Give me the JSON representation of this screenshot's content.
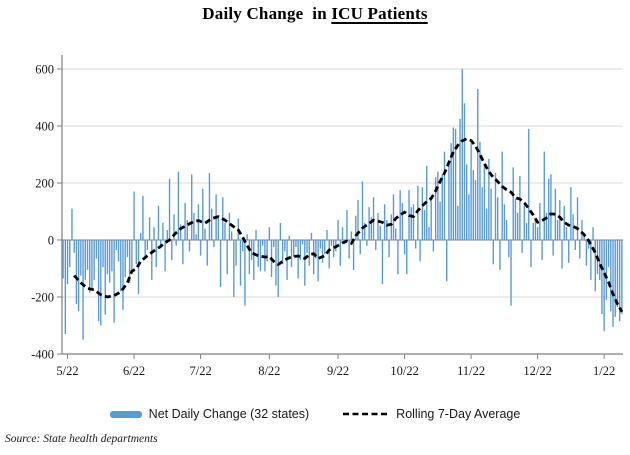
{
  "title": {
    "plain": "Daily Change  in",
    "underlined": "ICU Patients"
  },
  "source_note": "Source: State health departments",
  "legend": {
    "bar_label": "Net Daily Change (32 states)",
    "line_label": "Rolling 7-Day Average"
  },
  "colors": {
    "bar": "#5B9BD5",
    "rolling_line": "#000000",
    "gridline": "#D9D9D9",
    "zero_line": "#A6A6A6",
    "axis": "#808080",
    "text": "#1a1a1a"
  },
  "chart_data": {
    "type": "bar",
    "title": "Daily Change in ICU Patients",
    "xlabel": "",
    "ylabel": "",
    "ylim": [
      -400,
      600
    ],
    "y_ticks": [
      600,
      400,
      200,
      0,
      -200,
      -400
    ],
    "grid": true,
    "legend_position": "bottom",
    "x_tick_labels": [
      "5/22",
      "6/22",
      "7/22",
      "8/22",
      "9/22",
      "10/22",
      "11/22",
      "12/22",
      "1/22"
    ],
    "x_tick_day_indices": [
      2,
      32,
      62,
      93,
      124,
      154,
      184,
      214,
      244
    ],
    "series": [
      {
        "name": "Net Daily Change (32 states)",
        "type": "bar",
        "values": [
          -135,
          -330,
          -155,
          -95,
          110,
          -45,
          -225,
          -250,
          -125,
          -350,
          -140,
          -105,
          -185,
          -170,
          -140,
          -65,
          -285,
          -300,
          -95,
          -262,
          -120,
          -150,
          -110,
          -290,
          -35,
          -75,
          -180,
          -245,
          -130,
          -60,
          -150,
          -110,
          170,
          -85,
          -190,
          25,
          155,
          -60,
          -35,
          80,
          -140,
          45,
          -95,
          120,
          -30,
          60,
          -110,
          35,
          215,
          -70,
          90,
          -20,
          240,
          55,
          -85,
          130,
          70,
          -40,
          230,
          95,
          20,
          125,
          -55,
          180,
          40,
          -90,
          235,
          110,
          -25,
          160,
          85,
          -165,
          150,
          60,
          -120,
          95,
          30,
          -200,
          -90,
          75,
          -160,
          -40,
          -230,
          20,
          -120,
          -70,
          -140,
          35,
          -95,
          -110,
          -20,
          -110,
          -75,
          45,
          -130,
          -25,
          -160,
          -200,
          60,
          -85,
          -40,
          -140,
          15,
          -95,
          -60,
          -25,
          -135,
          -70,
          -15,
          -160,
          -45,
          -90,
          25,
          -120,
          -65,
          -145,
          -30,
          -80,
          -50,
          35,
          -100,
          -20,
          -60,
          -40,
          70,
          -90,
          45,
          -15,
          105,
          -65,
          30,
          -105,
          85,
          140,
          -50,
          205,
          60,
          -20,
          115,
          80,
          150,
          -35,
          95,
          50,
          -155,
          125,
          70,
          -60,
          90,
          160,
          40,
          -120,
          175,
          130,
          -50,
          -120,
          175,
          115,
          125,
          -30,
          190,
          -75,
          185,
          105,
          260,
          45,
          150,
          -40,
          220,
          240,
          135,
          230,
          310,
          -145,
          265,
          340,
          395,
          390,
          120,
          425,
          600,
          480,
          265,
          160,
          340,
          245,
          210,
          530,
          345,
          185,
          265,
          110,
          285,
          180,
          -85,
          235,
          150,
          -105,
          310,
          125,
          70,
          -60,
          -230,
          255,
          145,
          95,
          225,
          -45,
          120,
          60,
          390,
          -95,
          60,
          75,
          45,
          130,
          -70,
          310,
          95,
          215,
          230,
          -55,
          180,
          70,
          140,
          -100,
          120,
          45,
          -80,
          185,
          90,
          -35,
          150,
          -65,
          70,
          25,
          -90,
          -30,
          -140,
          45,
          -180,
          -120,
          -140,
          -260,
          -320,
          -210,
          -95,
          -250,
          -305,
          -270,
          -235,
          -285,
          -260
        ]
      },
      {
        "name": "Rolling 7-Day Average",
        "type": "line",
        "style": "dashed",
        "points": [
          [
            5,
            -125
          ],
          [
            8,
            -150
          ],
          [
            11,
            -170
          ],
          [
            14,
            -175
          ],
          [
            17,
            -192
          ],
          [
            20,
            -200
          ],
          [
            23,
            -195
          ],
          [
            26,
            -182
          ],
          [
            29,
            -150
          ],
          [
            31,
            -110
          ],
          [
            33,
            -100
          ],
          [
            35,
            -75
          ],
          [
            38,
            -55
          ],
          [
            41,
            -38
          ],
          [
            44,
            -22
          ],
          [
            46,
            -10
          ],
          [
            48,
            0
          ],
          [
            50,
            18
          ],
          [
            53,
            40
          ],
          [
            56,
            53
          ],
          [
            59,
            65
          ],
          [
            61,
            68
          ],
          [
            64,
            59
          ],
          [
            67,
            75
          ],
          [
            70,
            82
          ],
          [
            73,
            70
          ],
          [
            76,
            52
          ],
          [
            79,
            35
          ],
          [
            81,
            10
          ],
          [
            83,
            -20
          ],
          [
            85,
            -45
          ],
          [
            88,
            -55
          ],
          [
            91,
            -60
          ],
          [
            93,
            -58
          ],
          [
            95,
            -75
          ],
          [
            97,
            -86
          ],
          [
            100,
            -70
          ],
          [
            102,
            -62
          ],
          [
            104,
            -58
          ],
          [
            106,
            -56
          ],
          [
            109,
            -65
          ],
          [
            111,
            -52
          ],
          [
            113,
            -48
          ],
          [
            115,
            -65
          ],
          [
            118,
            -55
          ],
          [
            120,
            -35
          ],
          [
            123,
            -24
          ],
          [
            126,
            -10
          ],
          [
            128,
            -4
          ],
          [
            130,
            -12
          ],
          [
            132,
            15
          ],
          [
            135,
            42
          ],
          [
            138,
            58
          ],
          [
            140,
            70
          ],
          [
            142,
            66
          ],
          [
            144,
            62
          ],
          [
            146,
            52
          ],
          [
            148,
            55
          ],
          [
            150,
            75
          ],
          [
            152,
            88
          ],
          [
            154,
            98
          ],
          [
            156,
            86
          ],
          [
            158,
            82
          ],
          [
            160,
            103
          ],
          [
            162,
            120
          ],
          [
            164,
            135
          ],
          [
            166,
            146
          ],
          [
            168,
            172
          ],
          [
            170,
            205
          ],
          [
            172,
            235
          ],
          [
            174,
            272
          ],
          [
            176,
            310
          ],
          [
            178,
            332
          ],
          [
            180,
            348
          ],
          [
            182,
            355
          ],
          [
            184,
            349
          ],
          [
            186,
            330
          ],
          [
            188,
            300
          ],
          [
            190,
            268
          ],
          [
            192,
            240
          ],
          [
            194,
            220
          ],
          [
            196,
            205
          ],
          [
            198,
            188
          ],
          [
            200,
            176
          ],
          [
            202,
            168
          ],
          [
            204,
            148
          ],
          [
            206,
            144
          ],
          [
            208,
            130
          ],
          [
            210,
            110
          ],
          [
            212,
            88
          ],
          [
            214,
            62
          ],
          [
            216,
            68
          ],
          [
            218,
            78
          ],
          [
            220,
            92
          ],
          [
            222,
            90
          ],
          [
            224,
            80
          ],
          [
            226,
            62
          ],
          [
            228,
            52
          ],
          [
            230,
            48
          ],
          [
            232,
            40
          ],
          [
            234,
            26
          ],
          [
            236,
            10
          ],
          [
            238,
            -15
          ],
          [
            240,
            -45
          ],
          [
            242,
            -82
          ],
          [
            244,
            -115
          ],
          [
            246,
            -148
          ],
          [
            248,
            -190
          ],
          [
            250,
            -225
          ],
          [
            252,
            -252
          ]
        ]
      }
    ]
  }
}
